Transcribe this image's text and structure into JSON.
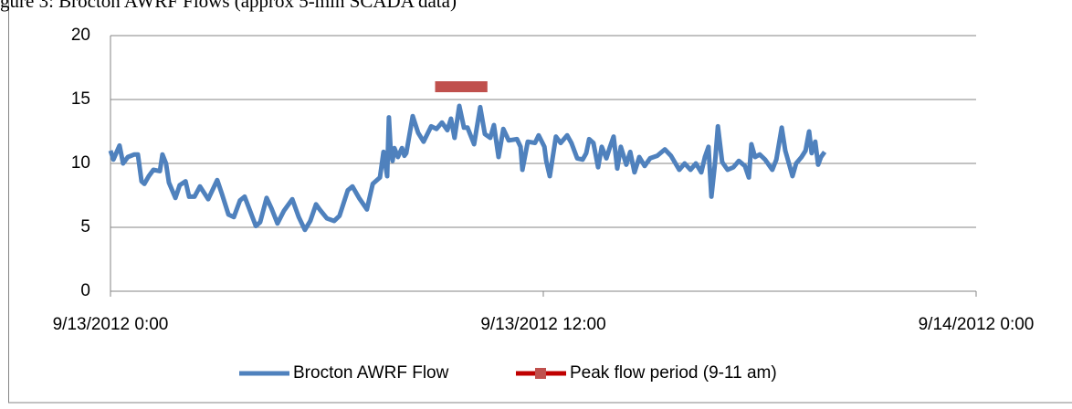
{
  "chart_data": {
    "type": "line",
    "title": "gure 3: Brocton AWRF Flows (approx 5-min SCADA data)",
    "xlim": [
      0,
      24
    ],
    "xticks": [
      {
        "value": 0,
        "label": "9/13/2012 0:00"
      },
      {
        "value": 12,
        "label": "9/13/2012 12:00"
      },
      {
        "value": 24,
        "label": "9/14/2012 0:00"
      }
    ],
    "ylim": [
      0,
      20
    ],
    "yticks": [
      0,
      5,
      10,
      15,
      20
    ],
    "grid": true,
    "legend": "bottom",
    "series": [
      {
        "name": "Brocton AWRF Flow",
        "color": "#4f81bd",
        "x": [
          0,
          0.08,
          0.25,
          0.35,
          0.48,
          0.66,
          0.76,
          0.86,
          0.94,
          1.06,
          1.19,
          1.37,
          1.44,
          1.54,
          1.62,
          1.8,
          1.92,
          2.08,
          2.18,
          2.33,
          2.48,
          2.71,
          2.96,
          3.09,
          3.27,
          3.42,
          3.59,
          3.72,
          4.03,
          4.15,
          4.33,
          4.46,
          4.63,
          4.81,
          5.04,
          5.22,
          5.39,
          5.54,
          5.7,
          5.8,
          6.0,
          6.2,
          6.35,
          6.58,
          6.71,
          6.89,
          7.11,
          7.27,
          7.47,
          7.57,
          7.67,
          7.72,
          7.77,
          7.82,
          7.87,
          7.97,
          8.08,
          8.15,
          8.2,
          8.38,
          8.53,
          8.68,
          8.89,
          9.04,
          9.19,
          9.34,
          9.44,
          9.54,
          9.67,
          9.8,
          9.9,
          10.08,
          10.25,
          10.38,
          10.53,
          10.63,
          10.76,
          10.89,
          11.04,
          11.27,
          11.37,
          11.42,
          11.57,
          11.77,
          11.87,
          12.03,
          12.08,
          12.18,
          12.35,
          12.48,
          12.66,
          12.78,
          12.94,
          13.09,
          13.19,
          13.27,
          13.39,
          13.52,
          13.62,
          13.75,
          13.85,
          13.95,
          14.05,
          14.15,
          14.3,
          14.41,
          14.53,
          14.66,
          14.81,
          14.96,
          15.16,
          15.37,
          15.54,
          15.77,
          15.92,
          16.08,
          16.23,
          16.38,
          16.48,
          16.58,
          16.66,
          16.76,
          16.84,
          16.96,
          17.11,
          17.27,
          17.42,
          17.59,
          17.7,
          17.77,
          17.87,
          18.0,
          18.15,
          18.35,
          18.46,
          18.61,
          18.71,
          18.81,
          18.91,
          19.01,
          19.16,
          19.27,
          19.37,
          19.44,
          19.54,
          19.62,
          19.7,
          19.8
        ],
        "values": [
          11,
          10.3,
          11.4,
          10,
          10.5,
          10.7,
          10.7,
          8.6,
          8.4,
          9,
          9.5,
          9.4,
          10.7,
          10,
          8.5,
          7.3,
          8.3,
          8.6,
          7.4,
          7.4,
          8.2,
          7.2,
          8.7,
          7.6,
          6,
          5.8,
          7.1,
          7.4,
          5.1,
          5.4,
          7.3,
          6.5,
          5.3,
          6.3,
          7.2,
          5.8,
          4.8,
          5.5,
          6.8,
          6.4,
          5.7,
          5.5,
          5.9,
          7.9,
          8.2,
          7.3,
          6.4,
          8.4,
          8.9,
          10.9,
          9,
          13.6,
          11,
          10.2,
          11.2,
          10.5,
          11.2,
          10.6,
          10.8,
          13.7,
          12.4,
          11.7,
          12.9,
          12.7,
          13.2,
          12.6,
          13.5,
          12,
          14.5,
          12.8,
          12.8,
          11.5,
          14.4,
          12.3,
          12,
          13,
          10.5,
          12.7,
          11.8,
          11.9,
          11.3,
          9.5,
          11.7,
          11.6,
          12.2,
          11.3,
          10.2,
          9,
          12.1,
          11.6,
          12.2,
          11.6,
          10.4,
          10.3,
          10.8,
          11.9,
          11.6,
          9.7,
          11.3,
          10.4,
          11.3,
          12.1,
          9.6,
          11.3,
          9.9,
          10.9,
          9.3,
          10.5,
          9.8,
          10.4,
          10.6,
          11.1,
          10.6,
          9.5,
          10,
          9.5,
          10,
          9.3,
          10.5,
          11.3,
          7.4,
          10,
          12.9,
          10.1,
          9.5,
          9.7,
          10.2,
          9.8,
          8.9,
          11.5,
          10.5,
          10.7,
          10.3,
          9.5,
          10.3,
          12.8,
          11,
          10,
          9,
          10,
          10.5,
          11,
          12.5,
          10.8,
          11.7,
          9.9,
          10.5,
          10.9
        ]
      },
      {
        "name": "Peak flow period (9-11 am)",
        "color": "#c0504d",
        "x": [
          9,
          10.45
        ],
        "values": [
          16,
          16
        ]
      }
    ]
  }
}
